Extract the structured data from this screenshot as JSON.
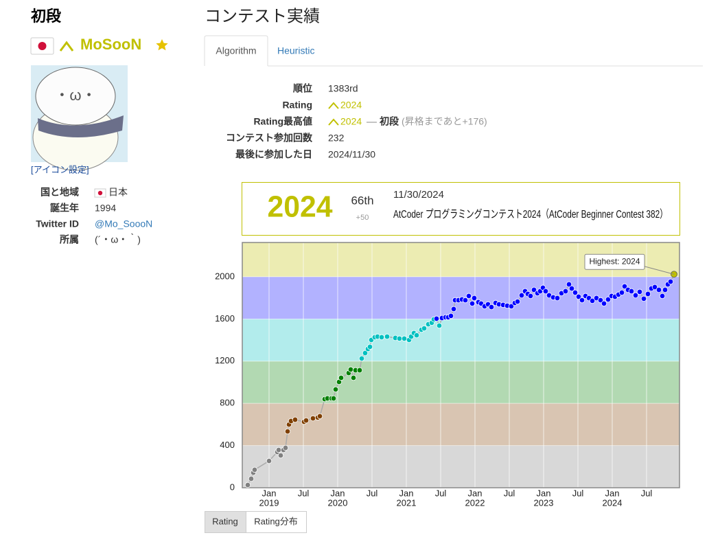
{
  "header": {
    "dan": "初段",
    "username": "MoSooN",
    "icon_setting": "[アイコン設定]"
  },
  "profile": [
    {
      "label": "国と地域",
      "value": "日本"
    },
    {
      "label": "誕生年",
      "value": "1994"
    },
    {
      "label": "Twitter ID",
      "value": "@Mo_SoooN"
    },
    {
      "label": "所属",
      "value": "(´・ω・｀)"
    }
  ],
  "section_title": "コンテスト実績",
  "tabs": [
    "Algorithm",
    "Heuristic"
  ],
  "stats": [
    {
      "label": "順位",
      "value": "1383rd"
    },
    {
      "label": "Rating",
      "value": "2024"
    },
    {
      "label": "Rating最高値",
      "value": "2024",
      "dan": "初段",
      "note": "(昇格まであと+176)"
    },
    {
      "label": "コンテスト参加回数",
      "value": "232"
    },
    {
      "label": "最後に参加した日",
      "value": "2024/11/30"
    }
  ],
  "contest_box": {
    "rating": "2024",
    "place": "66th",
    "diff": "+50",
    "date": "11/30/2024",
    "contest": "AtCoder プログラミングコンテスト2024（AtCoder Beginner Contest 382）"
  },
  "chart_data": {
    "type": "line",
    "annotation": "Highest: 2024",
    "xlim": [
      2018.61,
      2024.98
    ],
    "ylim": [
      0,
      2325
    ],
    "yticks": [
      0,
      400,
      800,
      1200,
      1600,
      2000
    ],
    "xticks": [
      {
        "value": 2019,
        "label": "Jan"
      },
      {
        "value": 2019.5,
        "label": "Jul"
      },
      {
        "value": 2020,
        "label": "Jan"
      },
      {
        "value": 2020.5,
        "label": "Jul"
      },
      {
        "value": 2021,
        "label": "Jan"
      },
      {
        "value": 2021.5,
        "label": "Jul"
      },
      {
        "value": 2022,
        "label": "Jan"
      },
      {
        "value": 2022.5,
        "label": "Jul"
      },
      {
        "value": 2023,
        "label": "Jan"
      },
      {
        "value": 2023.5,
        "label": "Jul"
      },
      {
        "value": 2024,
        "label": "Jan"
      },
      {
        "value": 2024.5,
        "label": "Jul"
      }
    ],
    "x_year_labels": [
      {
        "value": 2019,
        "label": "2019"
      },
      {
        "value": 2020,
        "label": "2020"
      },
      {
        "value": 2021,
        "label": "2021"
      },
      {
        "value": 2022,
        "label": "2022"
      },
      {
        "value": 2023,
        "label": "2023"
      },
      {
        "value": 2024,
        "label": "2024"
      }
    ],
    "bands": [
      {
        "from": 0,
        "to": 400,
        "color": "#d8d8d8",
        "point": "#808080"
      },
      {
        "from": 400,
        "to": 800,
        "color": "#d9c5b2",
        "point": "#804000"
      },
      {
        "from": 800,
        "to": 1200,
        "color": "#b2d9b2",
        "point": "#008000"
      },
      {
        "from": 1200,
        "to": 1600,
        "color": "#b2ecec",
        "point": "#00c0c0"
      },
      {
        "from": 1600,
        "to": 2000,
        "color": "#b2b2ff",
        "point": "#0000ff"
      },
      {
        "from": 2000,
        "to": 2400,
        "color": "#ececb2",
        "point": "#c0c000"
      }
    ],
    "line_color": "#aaaaaa",
    "x": [
      2018.69,
      2018.74,
      2018.77,
      2018.79,
      2019.0,
      2019.12,
      2019.14,
      2019.17,
      2019.21,
      2019.24,
      2019.27,
      2019.29,
      2019.32,
      2019.38,
      2019.51,
      2019.54,
      2019.64,
      2019.71,
      2019.74,
      2019.81,
      2019.85,
      2019.91,
      2019.94,
      2019.97,
      2020.02,
      2020.05,
      2020.16,
      2020.19,
      2020.23,
      2020.26,
      2020.32,
      2020.35,
      2020.4,
      2020.44,
      2020.47,
      2020.49,
      2020.54,
      2020.58,
      2020.64,
      2020.72,
      2020.84,
      2020.9,
      2020.97,
      2021.04,
      2021.07,
      2021.11,
      2021.15,
      2021.22,
      2021.26,
      2021.32,
      2021.37,
      2021.4,
      2021.44,
      2021.48,
      2021.52,
      2021.57,
      2021.61,
      2021.65,
      2021.69,
      2021.71,
      2021.76,
      2021.81,
      2021.86,
      2021.91,
      2021.96,
      2021.99,
      2022.05,
      2022.09,
      2022.14,
      2022.19,
      2022.24,
      2022.3,
      2022.35,
      2022.41,
      2022.47,
      2022.53,
      2022.58,
      2022.62,
      2022.68,
      2022.73,
      2022.77,
      2022.81,
      2022.86,
      2022.91,
      2022.95,
      2022.99,
      2023.03,
      2023.08,
      2023.14,
      2023.2,
      2023.26,
      2023.32,
      2023.37,
      2023.41,
      2023.46,
      2023.51,
      2023.56,
      2023.61,
      2023.66,
      2023.71,
      2023.77,
      2023.83,
      2023.88,
      2023.94,
      2023.99,
      2024.04,
      2024.09,
      2024.14,
      2024.18,
      2024.23,
      2024.28,
      2024.34,
      2024.4,
      2024.46,
      2024.52,
      2024.57,
      2024.62,
      2024.68,
      2024.73,
      2024.77,
      2024.81,
      2024.85,
      2024.9
    ],
    "values": [
      26,
      85,
      143,
      170,
      254,
      339,
      358,
      306,
      358,
      378,
      534,
      599,
      632,
      645,
      625,
      638,
      658,
      665,
      678,
      840,
      847,
      847,
      847,
      932,
      1003,
      1042,
      1088,
      1121,
      1042,
      1114,
      1114,
      1225,
      1277,
      1316,
      1336,
      1401,
      1427,
      1433,
      1427,
      1433,
      1420,
      1414,
      1414,
      1401,
      1433,
      1466,
      1446,
      1498,
      1511,
      1550,
      1564,
      1596,
      1603,
      1537,
      1609,
      1616,
      1616,
      1629,
      1694,
      1778,
      1778,
      1785,
      1778,
      1818,
      1746,
      1798,
      1759,
      1746,
      1720,
      1739,
      1713,
      1752,
      1739,
      1733,
      1726,
      1720,
      1752,
      1765,
      1824,
      1863,
      1837,
      1818,
      1876,
      1844,
      1863,
      1896,
      1863,
      1824,
      1805,
      1798,
      1844,
      1863,
      1928,
      1889,
      1850,
      1811,
      1778,
      1818,
      1798,
      1772,
      1798,
      1778,
      1746,
      1785,
      1818,
      1811,
      1831,
      1850,
      1909,
      1876,
      1863,
      1824,
      1857,
      1792,
      1837,
      1889,
      1902,
      1876,
      1818,
      1876,
      1928,
      1954,
      2024
    ]
  },
  "buttons": [
    "Rating",
    "Rating分布"
  ]
}
